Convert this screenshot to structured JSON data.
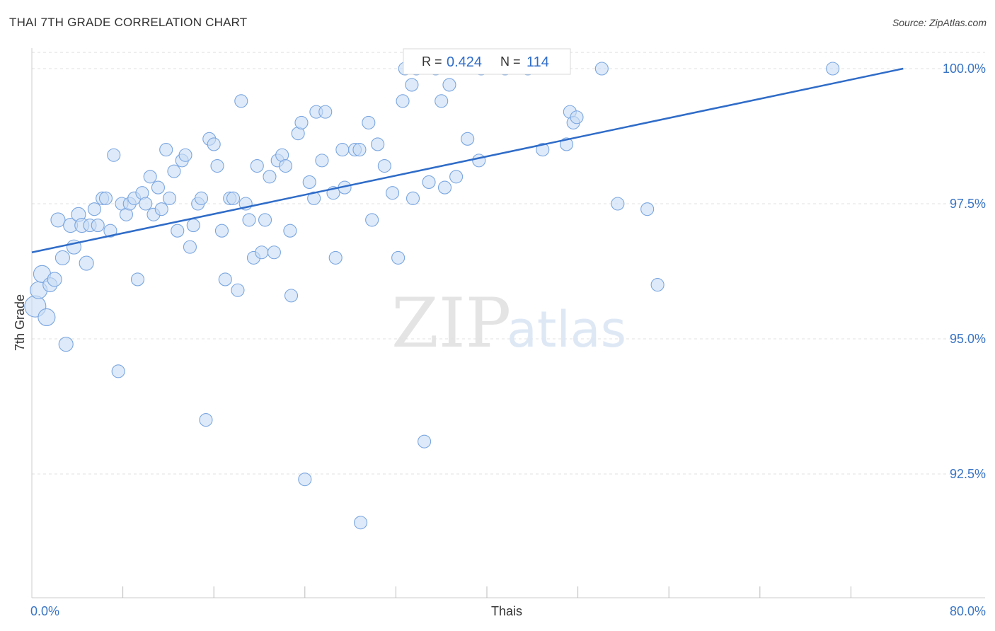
{
  "header": {
    "title": "THAI 7TH GRADE CORRELATION CHART",
    "source": "Source: ZipAtlas.com"
  },
  "watermark": {
    "zip": "ZIP",
    "atlas": "atlas"
  },
  "legend": {
    "r_label": "R =",
    "r_value": "0.424",
    "n_label": "N =",
    "n_value": "114"
  },
  "colors": {
    "accent": "#2f6cc8",
    "dot_fill": "#c8dcf5",
    "dot_stroke": "#7aa6e0",
    "grid": "#dddddd"
  },
  "chart_data": {
    "type": "scatter",
    "title": "THAI 7TH GRADE CORRELATION CHART",
    "xlabel": "Thais",
    "ylabel": "7th Grade",
    "xlim": [
      0,
      80
    ],
    "ylim": [
      90.0,
      100.3
    ],
    "x_tick_labels": [
      {
        "value": 0,
        "label": "0.0%"
      },
      {
        "value": 80,
        "label": "80.0%"
      }
    ],
    "y_ticks": [
      {
        "value": 92.5,
        "label": "92.5%"
      },
      {
        "value": 95.0,
        "label": "95.0%"
      },
      {
        "value": 97.5,
        "label": "97.5%"
      },
      {
        "value": 100.0,
        "label": "100.0%"
      }
    ],
    "x_minor_ticks": [
      8,
      16,
      24,
      32,
      40,
      48,
      56,
      64,
      72
    ],
    "grid": true,
    "trendline": {
      "x": [
        0,
        76.6
      ],
      "y": [
        96.6,
        100.0
      ]
    },
    "points": [
      {
        "x": 0.3,
        "y": 95.6,
        "s": 3
      },
      {
        "x": 0.6,
        "y": 95.9,
        "s": 2
      },
      {
        "x": 0.9,
        "y": 96.2,
        "s": 2
      },
      {
        "x": 1.3,
        "y": 95.4,
        "s": 2
      },
      {
        "x": 1.6,
        "y": 96.0,
        "s": 1
      },
      {
        "x": 2.0,
        "y": 96.1,
        "s": 1
      },
      {
        "x": 2.3,
        "y": 97.2,
        "s": 1
      },
      {
        "x": 2.7,
        "y": 96.5,
        "s": 1
      },
      {
        "x": 3.0,
        "y": 94.9,
        "s": 1
      },
      {
        "x": 3.4,
        "y": 97.1,
        "s": 1
      },
      {
        "x": 3.7,
        "y": 96.7,
        "s": 1
      },
      {
        "x": 4.1,
        "y": 97.3,
        "s": 1
      },
      {
        "x": 4.4,
        "y": 97.1,
        "s": 1
      },
      {
        "x": 4.8,
        "y": 96.4,
        "s": 1
      },
      {
        "x": 5.1,
        "y": 97.1,
        "s": 0
      },
      {
        "x": 5.5,
        "y": 97.4,
        "s": 0
      },
      {
        "x": 5.8,
        "y": 97.1,
        "s": 0
      },
      {
        "x": 6.2,
        "y": 97.6,
        "s": 0
      },
      {
        "x": 6.5,
        "y": 97.6,
        "s": 0
      },
      {
        "x": 6.9,
        "y": 97.0,
        "s": 0
      },
      {
        "x": 7.2,
        "y": 98.4,
        "s": 0
      },
      {
        "x": 7.6,
        "y": 94.4,
        "s": 0
      },
      {
        "x": 7.9,
        "y": 97.5,
        "s": 0
      },
      {
        "x": 8.3,
        "y": 97.3,
        "s": 0
      },
      {
        "x": 8.6,
        "y": 97.5,
        "s": 0
      },
      {
        "x": 9.0,
        "y": 97.6,
        "s": 0
      },
      {
        "x": 9.3,
        "y": 96.1,
        "s": 0
      },
      {
        "x": 9.7,
        "y": 97.7,
        "s": 0
      },
      {
        "x": 10.0,
        "y": 97.5,
        "s": 0
      },
      {
        "x": 10.4,
        "y": 98.0,
        "s": 0
      },
      {
        "x": 10.7,
        "y": 97.3,
        "s": 0
      },
      {
        "x": 11.1,
        "y": 97.8,
        "s": 0
      },
      {
        "x": 11.4,
        "y": 97.4,
        "s": 0
      },
      {
        "x": 11.8,
        "y": 98.5,
        "s": 0
      },
      {
        "x": 12.1,
        "y": 97.6,
        "s": 0
      },
      {
        "x": 12.5,
        "y": 98.1,
        "s": 0
      },
      {
        "x": 12.8,
        "y": 97.0,
        "s": 0
      },
      {
        "x": 13.2,
        "y": 98.3,
        "s": 0
      },
      {
        "x": 13.5,
        "y": 98.4,
        "s": 0
      },
      {
        "x": 13.9,
        "y": 96.7,
        "s": 0
      },
      {
        "x": 14.2,
        "y": 97.1,
        "s": 0
      },
      {
        "x": 14.6,
        "y": 97.5,
        "s": 0
      },
      {
        "x": 14.9,
        "y": 97.6,
        "s": 0
      },
      {
        "x": 15.3,
        "y": 93.5,
        "s": 0
      },
      {
        "x": 15.6,
        "y": 98.7,
        "s": 0
      },
      {
        "x": 16.0,
        "y": 98.6,
        "s": 0
      },
      {
        "x": 16.3,
        "y": 98.2,
        "s": 0
      },
      {
        "x": 16.7,
        "y": 97.0,
        "s": 0
      },
      {
        "x": 17.0,
        "y": 96.1,
        "s": 0
      },
      {
        "x": 17.4,
        "y": 97.6,
        "s": 0
      },
      {
        "x": 17.7,
        "y": 97.6,
        "s": 0
      },
      {
        "x": 18.1,
        "y": 95.9,
        "s": 0
      },
      {
        "x": 18.4,
        "y": 99.4,
        "s": 0
      },
      {
        "x": 18.8,
        "y": 97.5,
        "s": 0
      },
      {
        "x": 19.1,
        "y": 97.2,
        "s": 0
      },
      {
        "x": 19.5,
        "y": 96.5,
        "s": 0
      },
      {
        "x": 19.8,
        "y": 98.2,
        "s": 0
      },
      {
        "x": 20.2,
        "y": 96.6,
        "s": 0
      },
      {
        "x": 20.5,
        "y": 97.2,
        "s": 0
      },
      {
        "x": 20.9,
        "y": 98.0,
        "s": 0
      },
      {
        "x": 21.3,
        "y": 96.6,
        "s": 0
      },
      {
        "x": 21.6,
        "y": 98.3,
        "s": 0
      },
      {
        "x": 22.0,
        "y": 98.4,
        "s": 0
      },
      {
        "x": 22.3,
        "y": 98.2,
        "s": 0
      },
      {
        "x": 22.7,
        "y": 97.0,
        "s": 0
      },
      {
        "x": 22.8,
        "y": 95.8,
        "s": 0
      },
      {
        "x": 23.4,
        "y": 98.8,
        "s": 0
      },
      {
        "x": 23.7,
        "y": 99.0,
        "s": 0
      },
      {
        "x": 24.0,
        "y": 92.4,
        "s": 0
      },
      {
        "x": 24.4,
        "y": 97.9,
        "s": 0
      },
      {
        "x": 24.8,
        "y": 97.6,
        "s": 0
      },
      {
        "x": 25.0,
        "y": 99.2,
        "s": 0
      },
      {
        "x": 25.5,
        "y": 98.3,
        "s": 0
      },
      {
        "x": 25.8,
        "y": 99.2,
        "s": 0
      },
      {
        "x": 26.5,
        "y": 97.7,
        "s": 0
      },
      {
        "x": 26.7,
        "y": 96.5,
        "s": 0
      },
      {
        "x": 27.3,
        "y": 98.5,
        "s": 0
      },
      {
        "x": 27.5,
        "y": 97.8,
        "s": 0
      },
      {
        "x": 28.4,
        "y": 98.5,
        "s": 0
      },
      {
        "x": 28.8,
        "y": 98.5,
        "s": 0
      },
      {
        "x": 28.9,
        "y": 91.6,
        "s": 0
      },
      {
        "x": 29.6,
        "y": 99.0,
        "s": 0
      },
      {
        "x": 29.9,
        "y": 97.2,
        "s": 0
      },
      {
        "x": 30.4,
        "y": 98.6,
        "s": 0
      },
      {
        "x": 31.0,
        "y": 98.2,
        "s": 0
      },
      {
        "x": 31.7,
        "y": 97.7,
        "s": 0
      },
      {
        "x": 32.2,
        "y": 96.5,
        "s": 0
      },
      {
        "x": 32.6,
        "y": 99.4,
        "s": 0
      },
      {
        "x": 32.8,
        "y": 100.0,
        "s": 0
      },
      {
        "x": 33.4,
        "y": 99.7,
        "s": 0
      },
      {
        "x": 33.5,
        "y": 97.6,
        "s": 0
      },
      {
        "x": 33.8,
        "y": 100.0,
        "s": 0
      },
      {
        "x": 34.5,
        "y": 93.1,
        "s": 0
      },
      {
        "x": 34.9,
        "y": 97.9,
        "s": 0
      },
      {
        "x": 35.5,
        "y": 100.0,
        "s": 0
      },
      {
        "x": 36.0,
        "y": 99.4,
        "s": 0
      },
      {
        "x": 36.3,
        "y": 97.8,
        "s": 0
      },
      {
        "x": 36.7,
        "y": 99.7,
        "s": 0
      },
      {
        "x": 37.3,
        "y": 98.0,
        "s": 0
      },
      {
        "x": 38.3,
        "y": 98.7,
        "s": 0
      },
      {
        "x": 39.3,
        "y": 98.3,
        "s": 0
      },
      {
        "x": 39.5,
        "y": 100.0,
        "s": 0
      },
      {
        "x": 41.6,
        "y": 100.0,
        "s": 0
      },
      {
        "x": 43.6,
        "y": 100.0,
        "s": 0
      },
      {
        "x": 44.9,
        "y": 98.5,
        "s": 0
      },
      {
        "x": 47.0,
        "y": 98.6,
        "s": 0
      },
      {
        "x": 47.3,
        "y": 99.2,
        "s": 0
      },
      {
        "x": 47.6,
        "y": 99.0,
        "s": 0
      },
      {
        "x": 47.9,
        "y": 99.1,
        "s": 0
      },
      {
        "x": 50.1,
        "y": 100.0,
        "s": 0
      },
      {
        "x": 51.5,
        "y": 97.5,
        "s": 0
      },
      {
        "x": 54.1,
        "y": 97.4,
        "s": 0
      },
      {
        "x": 55.0,
        "y": 96.0,
        "s": 0
      },
      {
        "x": 70.4,
        "y": 100.0,
        "s": 0
      }
    ]
  }
}
